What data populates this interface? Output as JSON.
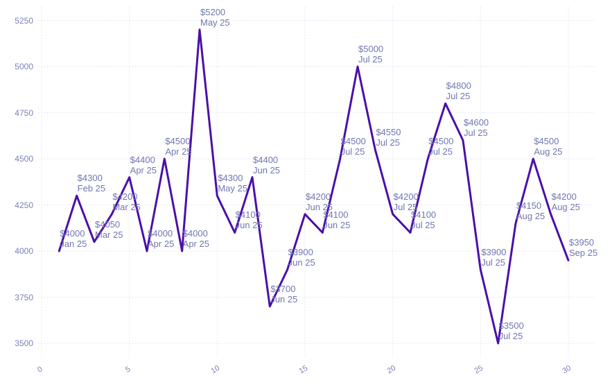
{
  "chart_data": {
    "type": "line",
    "title": "",
    "xlabel": "",
    "ylabel": "",
    "legend": false,
    "grid": true,
    "grid_style": "dotted",
    "x_range": [
      0,
      30
    ],
    "y_range": [
      3425,
      5335
    ],
    "x": [
      1,
      2,
      3,
      4,
      5,
      6,
      7,
      8,
      9,
      10,
      11,
      12,
      13,
      14,
      15,
      16,
      17,
      18,
      19,
      20,
      21,
      22,
      23,
      24,
      25,
      26,
      27,
      28,
      29,
      30
    ],
    "values": [
      4000,
      4300,
      4050,
      4200,
      4400,
      4000,
      4500,
      4000,
      5200,
      4300,
      4100,
      4400,
      3700,
      3900,
      4200,
      4100,
      4500,
      5000,
      4550,
      4200,
      4100,
      4500,
      4800,
      4600,
      3900,
      3500,
      4150,
      4500,
      4200,
      3950
    ],
    "value_labels": [
      "$4000",
      "$4300",
      "$4050",
      "$4200",
      "$4400",
      "$4000",
      "$4500",
      "$4000",
      "$5200",
      "$4300",
      "$4100",
      "$4400",
      "$3700",
      "$3900",
      "$4200",
      "$4100",
      "$4500",
      "$5000",
      "$4550",
      "$4200",
      "$4100",
      "$4500",
      "$4800",
      "$4600",
      "$3900",
      "$3500",
      "$4150",
      "$4500",
      "$4200",
      "$3950"
    ],
    "date_labels": [
      "Jan 25",
      "Feb 25",
      "Mar 25",
      "Mar 25",
      "Apr 25",
      "Apr 25",
      "Apr 25",
      "Apr 25",
      "May 25",
      "May 25",
      "Jun 25",
      "Jun 25",
      "Jun 25",
      "Jun 25",
      "Jun 25",
      "Jun 25",
      "Jul 25",
      "Jul 25",
      "Jul 25",
      "Jul 25",
      "Jul 25",
      "Jul 25",
      "Jul 25",
      "Jul 25",
      "Jul 25",
      "Jul 25",
      "Aug 25",
      "Aug 25",
      "Aug 25",
      "Sep 25"
    ],
    "x_ticks": [
      "0",
      "5",
      "10",
      "15",
      "20",
      "25",
      "30"
    ],
    "y_ticks": [
      "3500",
      "3750",
      "4000",
      "4250",
      "4500",
      "4750",
      "5000",
      "5250"
    ],
    "colors": {
      "line": "#4a0fa9",
      "point_label": "#7076b0",
      "axis_label": "#7b80b8",
      "grid": "#e9e6f6",
      "background": "#ffffff"
    }
  }
}
